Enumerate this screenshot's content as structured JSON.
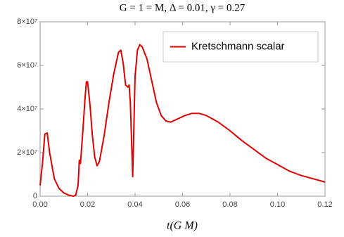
{
  "chart_data": {
    "type": "line",
    "title": "G = 1 = M, Δ = 0.01, γ = 0.27",
    "x_label": "t(G M)",
    "x": [
      0,
      0.001,
      0.002,
      0.003,
      0.004,
      0.006,
      0.008,
      0.01,
      0.012,
      0.014,
      0.015,
      0.016,
      0.0165,
      0.017,
      0.018,
      0.019,
      0.0195,
      0.02,
      0.021,
      0.022,
      0.023,
      0.024,
      0.025,
      0.027,
      0.029,
      0.031,
      0.033,
      0.034,
      0.035,
      0.036,
      0.037,
      0.0375,
      0.038,
      0.039,
      0.04,
      0.041,
      0.042,
      0.043,
      0.045,
      0.047,
      0.049,
      0.051,
      0.053,
      0.055,
      0.058,
      0.061,
      0.064,
      0.067,
      0.07,
      0.075,
      0.08,
      0.085,
      0.09,
      0.095,
      0.1,
      0.105,
      0.11,
      0.115,
      0.12
    ],
    "series": [
      {
        "name": "Kretschmann scalar",
        "color": "#e00000",
        "values": [
          5000000,
          15000000,
          28500000,
          29000000,
          20000000,
          8000000,
          3500000,
          1500000,
          500000,
          0,
          500000,
          5000000,
          16500000,
          15000000,
          30000000,
          46000000,
          52500000,
          52500000,
          42000000,
          28000000,
          18000000,
          14000000,
          16000000,
          28000000,
          43000000,
          56000000,
          66000000,
          67000000,
          61000000,
          51000000,
          50000000,
          51000000,
          43000000,
          9000000,
          55000000,
          67000000,
          69500000,
          68500000,
          63000000,
          53000000,
          43000000,
          37000000,
          34500000,
          34000000,
          35500000,
          37000000,
          38000000,
          38000000,
          37000000,
          34000000,
          30000000,
          25500000,
          21500000,
          17500000,
          14500000,
          11500000,
          9500000,
          8000000,
          6500000
        ]
      }
    ],
    "xlim": [
      0,
      0.12
    ],
    "ylim": [
      0,
      80000000
    ],
    "xticks": [
      {
        "value": 0,
        "label": "0.00"
      },
      {
        "value": 0.02,
        "label": "0.02"
      },
      {
        "value": 0.04,
        "label": "0.04"
      },
      {
        "value": 0.06,
        "label": "0.06"
      },
      {
        "value": 0.08,
        "label": "0.08"
      },
      {
        "value": 0.1,
        "label": "0.10"
      },
      {
        "value": 0.12,
        "label": "0.12"
      }
    ],
    "yticks": [
      0,
      {
        "value": 20000000,
        "label": "2×10⁷"
      },
      {
        "value": 40000000,
        "label": "4×10⁷"
      },
      {
        "value": 60000000,
        "label": "6×10⁷"
      },
      {
        "value": 80000000,
        "label": "8×10⁷"
      }
    ],
    "legend": "top-right"
  }
}
